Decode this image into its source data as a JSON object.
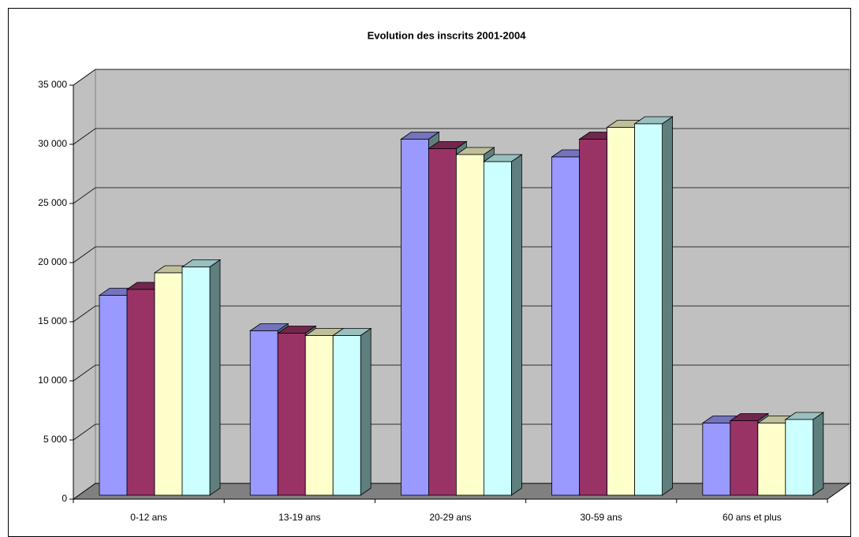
{
  "chart_data": {
    "type": "bar3d",
    "title": "Evolution des inscrits 2001-2004",
    "categories": [
      "0-12 ans",
      "13-19 ans",
      "20-29 ans",
      "30-59 ans",
      "60 ans et plus"
    ],
    "series": [
      {
        "color": "#9999FF",
        "values": [
          16900,
          13900,
          30100,
          28600,
          6100
        ]
      },
      {
        "color": "#993366",
        "values": [
          17400,
          13700,
          29300,
          30100,
          6300
        ]
      },
      {
        "color": "#FFFFCC",
        "values": [
          18800,
          13500,
          28800,
          31100,
          6100
        ]
      },
      {
        "color": "#CCFFFF",
        "values": [
          19300,
          13500,
          28200,
          31400,
          6400
        ]
      }
    ],
    "ylim": [
      0,
      35000
    ],
    "yticks": [
      0,
      {
        "value": 5000,
        "label": "5 000"
      },
      {
        "value": 10000,
        "label": "10 000"
      },
      {
        "value": 15000,
        "label": "15 000"
      },
      {
        "value": 20000,
        "label": "20 000"
      },
      {
        "value": 25000,
        "label": "25 000"
      },
      {
        "value": 30000,
        "label": "30 000"
      },
      {
        "value": 35000,
        "label": "35 000"
      }
    ],
    "grid": true
  }
}
